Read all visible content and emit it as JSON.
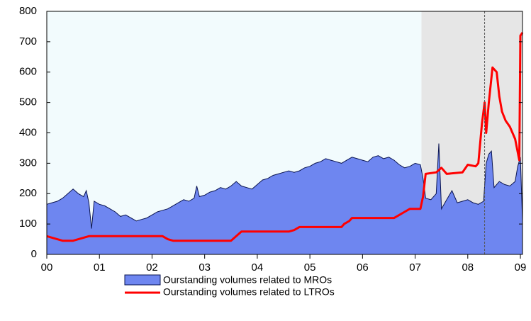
{
  "chart_data": {
    "type": "area_line",
    "xlim": [
      2000,
      2009.04
    ],
    "xticks": [
      {
        "value": 2000,
        "label": "00"
      },
      {
        "value": 2001,
        "label": "01"
      },
      {
        "value": 2002,
        "label": "02"
      },
      {
        "value": 2003,
        "label": "03"
      },
      {
        "value": 2004,
        "label": "04"
      },
      {
        "value": 2005,
        "label": "05"
      },
      {
        "value": 2006,
        "label": "06"
      },
      {
        "value": 2007,
        "label": "07"
      },
      {
        "value": 2008,
        "label": "08"
      },
      {
        "value": 2009,
        "label": "09"
      }
    ],
    "ylim": [
      0,
      800
    ],
    "yticks": [
      0,
      100,
      200,
      300,
      400,
      500,
      600,
      700,
      800
    ],
    "shaded_region": [
      2007.12,
      2009.04
    ],
    "shade_color": "#e6e6e6",
    "background": "#f2fbfd",
    "vline": 2008.32,
    "series": [
      {
        "name": "Ourstanding volumes related to MROs",
        "kind": "area",
        "color": "#6e86f0",
        "edge_color": "#0a1450",
        "x": [
          2000.0,
          2000.1,
          2000.2,
          2000.3,
          2000.4,
          2000.5,
          2000.6,
          2000.7,
          2000.75,
          2000.8,
          2000.85,
          2000.9,
          2001.0,
          2001.1,
          2001.2,
          2001.3,
          2001.4,
          2001.5,
          2001.6,
          2001.7,
          2001.8,
          2001.9,
          2002.0,
          2002.1,
          2002.2,
          2002.3,
          2002.4,
          2002.5,
          2002.6,
          2002.7,
          2002.8,
          2002.85,
          2002.9,
          2003.0,
          2003.1,
          2003.2,
          2003.3,
          2003.4,
          2003.5,
          2003.6,
          2003.7,
          2003.8,
          2003.9,
          2004.0,
          2004.1,
          2004.2,
          2004.3,
          2004.4,
          2004.5,
          2004.6,
          2004.7,
          2004.8,
          2004.9,
          2005.0,
          2005.1,
          2005.2,
          2005.3,
          2005.4,
          2005.5,
          2005.6,
          2005.7,
          2005.8,
          2005.9,
          2006.0,
          2006.1,
          2006.2,
          2006.3,
          2006.4,
          2006.5,
          2006.6,
          2006.7,
          2006.8,
          2006.9,
          2007.0,
          2007.1,
          2007.15,
          2007.2,
          2007.3,
          2007.4,
          2007.45,
          2007.5,
          2007.6,
          2007.7,
          2007.8,
          2007.9,
          2008.0,
          2008.1,
          2008.2,
          2008.3,
          2008.35,
          2008.4,
          2008.45,
          2008.5,
          2008.6,
          2008.7,
          2008.8,
          2008.9,
          2008.95,
          2009.0,
          2009.04
        ],
        "values": [
          165,
          170,
          175,
          185,
          200,
          215,
          200,
          190,
          210,
          170,
          85,
          175,
          165,
          160,
          150,
          140,
          125,
          130,
          120,
          110,
          115,
          120,
          130,
          140,
          145,
          150,
          160,
          170,
          180,
          175,
          185,
          225,
          190,
          195,
          205,
          210,
          220,
          215,
          225,
          240,
          225,
          220,
          215,
          230,
          245,
          250,
          260,
          265,
          270,
          275,
          270,
          275,
          285,
          290,
          300,
          305,
          315,
          310,
          305,
          300,
          310,
          320,
          315,
          310,
          305,
          320,
          325,
          315,
          320,
          310,
          295,
          285,
          290,
          300,
          295,
          250,
          185,
          180,
          200,
          365,
          150,
          180,
          210,
          170,
          175,
          180,
          170,
          165,
          175,
          300,
          330,
          340,
          220,
          240,
          230,
          225,
          240,
          290,
          320,
          110
        ]
      },
      {
        "name": "Ourstanding volumes related to LTROs",
        "kind": "line",
        "color": "#ff0000",
        "x": [
          2000.0,
          2000.1,
          2000.2,
          2000.3,
          2000.5,
          2000.6,
          2000.7,
          2000.8,
          2002.2,
          2002.3,
          2002.4,
          2003.5,
          2003.6,
          2003.7,
          2004.6,
          2004.7,
          2004.8,
          2005.6,
          2005.65,
          2005.75,
          2005.8,
          2006.6,
          2006.7,
          2006.8,
          2006.9,
          2007.1,
          2007.15,
          2007.2,
          2007.4,
          2007.5,
          2007.6,
          2007.9,
          2008.0,
          2008.15,
          2008.2,
          2008.27,
          2008.32,
          2008.35,
          2008.4,
          2008.47,
          2008.55,
          2008.6,
          2008.65,
          2008.72,
          2008.8,
          2008.9,
          2008.98,
          2009.0,
          2009.04
        ],
        "values": [
          60,
          55,
          50,
          45,
          45,
          50,
          55,
          60,
          60,
          50,
          45,
          45,
          60,
          75,
          75,
          80,
          90,
          90,
          100,
          110,
          120,
          120,
          130,
          140,
          150,
          150,
          190,
          265,
          270,
          285,
          265,
          270,
          295,
          290,
          300,
          430,
          500,
          400,
          500,
          615,
          600,
          520,
          470,
          440,
          420,
          380,
          310,
          720,
          730
        ]
      }
    ]
  }
}
